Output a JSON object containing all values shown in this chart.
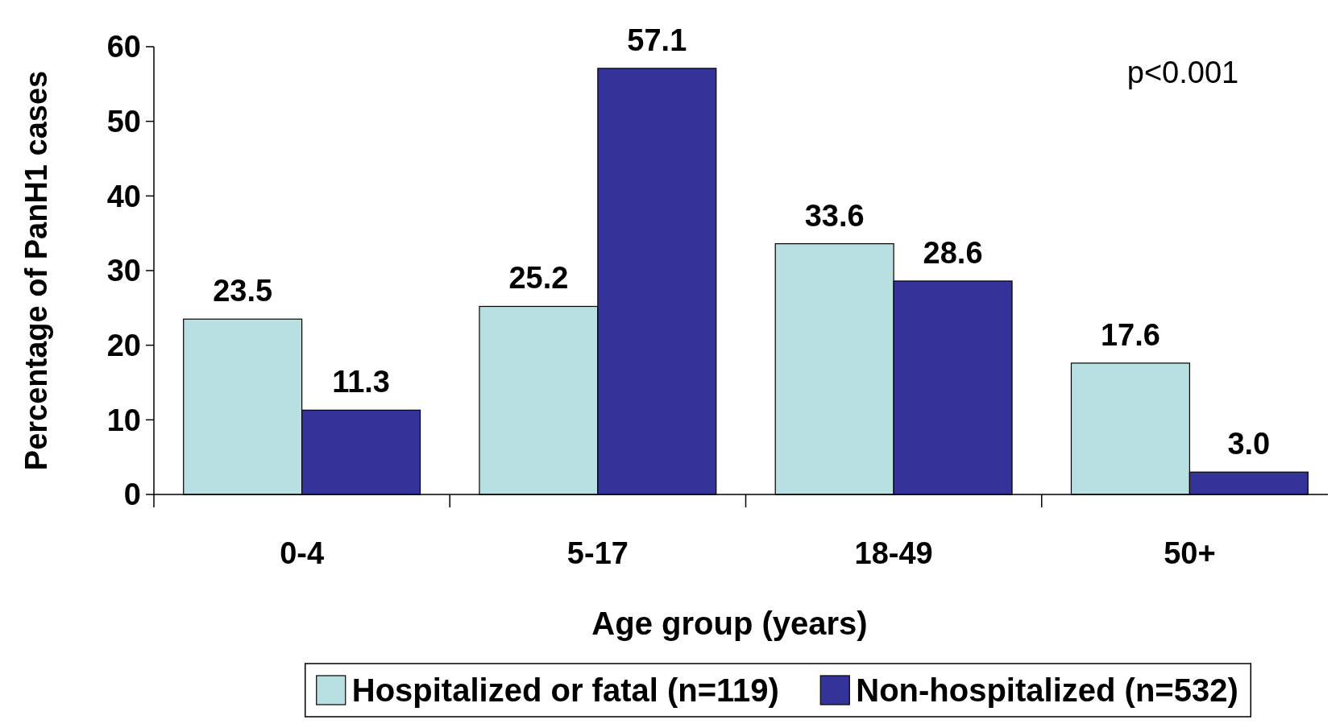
{
  "chart_data": {
    "type": "bar",
    "xlabel": "Age group (years)",
    "ylabel": "Percentage of PanH1 cases",
    "categories": [
      "0-4",
      "5-17",
      "18-49",
      "50+"
    ],
    "series": [
      {
        "name": "Hospitalized or fatal (n=119)",
        "color": "#b8e0e2",
        "values": [
          23.5,
          25.2,
          33.6,
          17.6
        ],
        "value_labels": [
          "23.5",
          "25.2",
          "33.6",
          "17.6"
        ]
      },
      {
        "name": "Non-hospitalized (n=532)",
        "color": "#333399",
        "values": [
          11.3,
          57.1,
          28.6,
          3.0
        ],
        "value_labels": [
          "11.3",
          "57.1",
          "28.6",
          "3.0"
        ]
      }
    ],
    "ylim": [
      0,
      60
    ],
    "yticks": [
      0,
      10,
      20,
      30,
      40,
      50,
      60
    ],
    "legend": "bottom",
    "grid": false,
    "annotations": [
      "p<0.001"
    ]
  }
}
